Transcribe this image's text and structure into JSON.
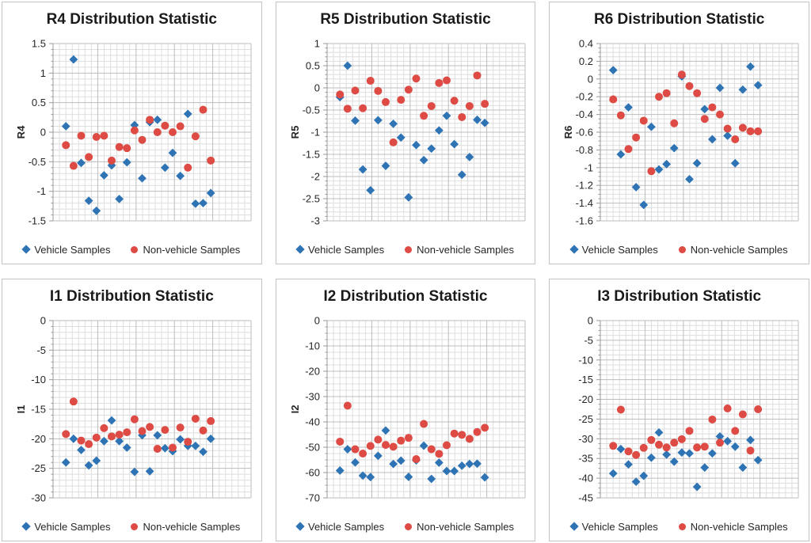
{
  "page": {
    "background": "#ffffff"
  },
  "colors": {
    "vehicle_marker": "#2E74B5",
    "non_vehicle_marker": "#DE4B45",
    "grid_minor": "#DEDEDE",
    "grid_major": "#BDBDBD",
    "axis_line": "#999999",
    "tick_text": "#262626",
    "title_text": "#1a1a1a",
    "tile_border": "#c3c3c3"
  },
  "legend": {
    "vehicle_label": "Vehicle Samples",
    "non_vehicle_label": "Non-vehicle Samples",
    "position": "bottom"
  },
  "chart_data": [
    {
      "type": "scatter",
      "title": "R4 Distribution Statistic",
      "ylabel": "R4",
      "xlabel": "",
      "ylim": [
        -1.5,
        1.5
      ],
      "y_major": 0.5,
      "y_minor_div": 5,
      "y_tick_labels": [
        "1.5",
        "1",
        "0.5",
        "0",
        "-0.5",
        "-1",
        "-1.5"
      ],
      "grid": "on",
      "x": [
        1,
        2,
        3,
        4,
        5,
        6,
        7,
        8,
        9,
        10,
        11,
        12,
        13,
        14,
        15,
        16,
        17,
        18,
        19,
        20
      ],
      "series": [
        {
          "name": "Vehicle Samples",
          "values": [
            0.1,
            1.23,
            -0.52,
            -1.16,
            -1.33,
            -0.73,
            -0.56,
            -1.13,
            -0.51,
            0.12,
            -0.78,
            0.17,
            0.21,
            -0.6,
            -0.35,
            -0.74,
            0.31,
            -1.21,
            -1.2,
            -1.03
          ]
        },
        {
          "name": "Non-vehicle Samples",
          "values": [
            -0.22,
            -0.57,
            -0.06,
            -0.42,
            -0.08,
            -0.06,
            -0.48,
            -0.25,
            -0.27,
            0.03,
            -0.13,
            0.21,
            0.0,
            0.11,
            0.0,
            0.1,
            -0.6,
            -0.07,
            0.38,
            -0.48
          ]
        }
      ]
    },
    {
      "type": "scatter",
      "title": "R5 Distribution Statistic",
      "ylabel": "R5",
      "xlabel": "",
      "ylim": [
        -3,
        1
      ],
      "y_major": 0.5,
      "y_minor_div": 5,
      "y_tick_labels": [
        "1",
        "0.5",
        "0",
        "-0.5",
        "-1",
        "-1.5",
        "-2",
        "-2.5",
        "-3"
      ],
      "grid": "on",
      "x": [
        1,
        2,
        3,
        4,
        5,
        6,
        7,
        8,
        9,
        10,
        11,
        12,
        13,
        14,
        15,
        16,
        17,
        18,
        19,
        20
      ],
      "series": [
        {
          "name": "Vehicle Samples",
          "values": [
            -0.21,
            0.5,
            -0.74,
            -1.84,
            -2.31,
            -0.73,
            -1.76,
            -0.81,
            -1.12,
            -2.47,
            -1.29,
            -1.63,
            -1.37,
            -0.96,
            -0.63,
            -1.27,
            -1.96,
            -1.56,
            -0.72,
            -0.79
          ]
        },
        {
          "name": "Non-vehicle Samples",
          "values": [
            -0.15,
            -0.47,
            -0.06,
            -0.46,
            0.16,
            -0.07,
            -0.32,
            -1.23,
            -0.27,
            -0.04,
            0.21,
            -0.63,
            -0.41,
            0.11,
            0.17,
            -0.29,
            -0.66,
            -0.41,
            0.28,
            -0.36
          ]
        }
      ]
    },
    {
      "type": "scatter",
      "title": "R6 Distribution Statistic",
      "ylabel": "R6",
      "xlabel": "",
      "ylim": [
        -1.6,
        0.4
      ],
      "y_major": 0.2,
      "y_minor_div": 4,
      "y_tick_labels": [
        "0.4",
        "0.2",
        "0",
        "-0.2",
        "-0.4",
        "-0.6",
        "-0.8",
        "-1",
        "-1.2",
        "-1.4",
        "-1.6"
      ],
      "grid": "on",
      "x": [
        1,
        2,
        3,
        4,
        5,
        6,
        7,
        8,
        9,
        10,
        11,
        12,
        13,
        14,
        15,
        16,
        17,
        18,
        19,
        20
      ],
      "series": [
        {
          "name": "Vehicle Samples",
          "values": [
            0.1,
            -0.85,
            -0.32,
            -1.22,
            -1.42,
            -0.54,
            -1.02,
            -0.96,
            -0.78,
            0.03,
            -1.13,
            -0.95,
            -0.34,
            -0.68,
            -0.1,
            -0.64,
            -0.95,
            -0.12,
            0.14,
            -0.07
          ]
        },
        {
          "name": "Non-vehicle Samples",
          "values": [
            -0.23,
            -0.41,
            -0.79,
            -0.66,
            -0.47,
            -1.04,
            -0.2,
            -0.16,
            -0.5,
            0.05,
            -0.08,
            -0.16,
            -0.45,
            -0.32,
            -0.4,
            -0.56,
            -0.68,
            -0.55,
            -0.59,
            -0.59
          ]
        }
      ]
    },
    {
      "type": "scatter",
      "title": "I1 Distribution Statistic",
      "ylabel": "I1",
      "xlabel": "",
      "ylim": [
        -30,
        0
      ],
      "y_major": 5,
      "y_minor_div": 5,
      "y_tick_labels": [
        "0",
        "-5",
        "-10",
        "-15",
        "-20",
        "-25",
        "-30"
      ],
      "grid": "on",
      "x": [
        1,
        2,
        3,
        4,
        5,
        6,
        7,
        8,
        9,
        10,
        11,
        12,
        13,
        14,
        15,
        16,
        17,
        18,
        19,
        20
      ],
      "series": [
        {
          "name": "Vehicle Samples",
          "values": [
            -24.0,
            -20.0,
            -21.9,
            -24.5,
            -23.7,
            -20.4,
            -16.9,
            -20.4,
            -21.5,
            -25.6,
            -19.4,
            -25.5,
            -19.4,
            -21.6,
            -22.1,
            -20.1,
            -21.2,
            -21.2,
            -22.2,
            -20.0
          ]
        },
        {
          "name": "Non-vehicle Samples",
          "values": [
            -19.2,
            -13.7,
            -20.3,
            -20.9,
            -19.8,
            -18.2,
            -19.6,
            -19.3,
            -18.9,
            -16.7,
            -18.7,
            -18.0,
            -21.7,
            -18.5,
            -21.5,
            -18.1,
            -20.5,
            -16.6,
            -18.6,
            -17.0
          ]
        }
      ]
    },
    {
      "type": "scatter",
      "title": "I2 Distribution Statistic",
      "ylabel": "I2",
      "xlabel": "",
      "ylim": [
        -70,
        0
      ],
      "y_major": 10,
      "y_minor_div": 4,
      "y_tick_labels": [
        "0",
        "-10",
        "-20",
        "-30",
        "-40",
        "-50",
        "-60",
        "-70"
      ],
      "grid": "on",
      "x": [
        1,
        2,
        3,
        4,
        5,
        6,
        7,
        8,
        9,
        10,
        11,
        12,
        13,
        14,
        15,
        16,
        17,
        18,
        19,
        20
      ],
      "series": [
        {
          "name": "Vehicle Samples",
          "values": [
            -59.2,
            -50.8,
            -56.0,
            -61.2,
            -61.8,
            -53.4,
            -43.4,
            -56.6,
            -55.3,
            -61.7,
            -55.2,
            -49.4,
            -62.5,
            -56.1,
            -59.4,
            -59.4,
            -57.3,
            -56.6,
            -56.5,
            -61.9
          ]
        },
        {
          "name": "Non-vehicle Samples",
          "values": [
            -47.8,
            -33.6,
            -50.8,
            -52.5,
            -49.5,
            -47.0,
            -49.1,
            -49.8,
            -47.4,
            -46.3,
            -54.7,
            -40.8,
            -50.8,
            -52.6,
            -49.2,
            -44.6,
            -45.1,
            -46.7,
            -44.0,
            -42.3
          ]
        }
      ]
    },
    {
      "type": "scatter",
      "title": "I3 Distribution Statistic",
      "ylabel": "",
      "xlabel": "",
      "ylim": [
        -45,
        0
      ],
      "y_major": 5,
      "y_minor_div": 4,
      "y_tick_labels": [
        "0",
        "-5",
        "-10",
        "-15",
        "-20",
        "-25",
        "-30",
        "-35",
        "-40",
        "-45"
      ],
      "grid": "on",
      "x": [
        1,
        2,
        3,
        4,
        5,
        6,
        7,
        8,
        9,
        10,
        11,
        12,
        13,
        14,
        15,
        16,
        17,
        18,
        19,
        20
      ],
      "series": [
        {
          "name": "Vehicle Samples",
          "values": [
            -38.8,
            -32.6,
            -36.5,
            -40.9,
            -39.4,
            -34.8,
            -28.4,
            -34.0,
            -35.8,
            -33.5,
            -33.7,
            -42.2,
            -37.3,
            -33.7,
            -29.4,
            -30.6,
            -32.0,
            -37.3,
            -30.3,
            -35.4
          ]
        },
        {
          "name": "Non-vehicle Samples",
          "values": [
            -31.8,
            -22.6,
            -33.2,
            -34.1,
            -32.3,
            -30.3,
            -31.5,
            -32.2,
            -31.0,
            -30.1,
            -28.0,
            -32.2,
            -32.0,
            -25.1,
            -31.0,
            -22.3,
            -28.0,
            -23.8,
            -33.0,
            -22.5
          ]
        }
      ]
    }
  ]
}
